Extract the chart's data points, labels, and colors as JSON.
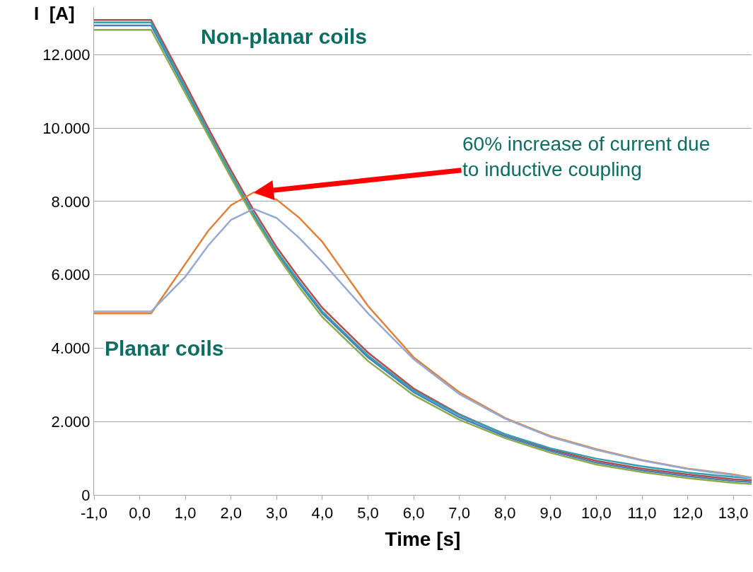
{
  "chart_data": {
    "type": "line",
    "xlabel": "Time [s]",
    "ylabel": "I  [A]",
    "x": [
      -1,
      0.25,
      1,
      1.5,
      2,
      2.5,
      3,
      3.5,
      4,
      5,
      6,
      7,
      8,
      9,
      10,
      11,
      12,
      13,
      13.4
    ],
    "series": [
      {
        "color": "#b84a47",
        "values": [
          12950,
          12950,
          11200,
          10000,
          8850,
          7750,
          6750,
          5900,
          5100,
          3880,
          2900,
          2200,
          1650,
          1240,
          930,
          720,
          560,
          430,
          400
        ]
      },
      {
        "color": "#4a7ebb",
        "values": [
          12800,
          12800,
          11050,
          9850,
          8700,
          7600,
          6600,
          5750,
          4950,
          3750,
          2800,
          2120,
          1600,
          1200,
          880,
          670,
          510,
          380,
          350
        ]
      },
      {
        "color": "#31a0b5",
        "values": [
          12880,
          12880,
          11100,
          9900,
          8750,
          7650,
          6650,
          5800,
          5000,
          3800,
          2850,
          2180,
          1660,
          1270,
          990,
          780,
          610,
          490,
          460
        ]
      },
      {
        "color": "#8aac4f",
        "values": [
          12680,
          12680,
          10950,
          9800,
          8650,
          7550,
          6550,
          5650,
          4850,
          3650,
          2720,
          2050,
          1550,
          1150,
          830,
          620,
          460,
          330,
          300
        ]
      },
      {
        "color": "#e0813a",
        "values": [
          4950,
          4950,
          6300,
          7200,
          7900,
          8250,
          8050,
          7550,
          6900,
          5150,
          3750,
          2800,
          2100,
          1600,
          1250,
          950,
          720,
          560,
          470
        ]
      },
      {
        "color": "#95a9d2",
        "values": [
          5000,
          5000,
          5950,
          6800,
          7500,
          7800,
          7550,
          7000,
          6350,
          4950,
          3700,
          2750,
          2080,
          1580,
          1230,
          940,
          710,
          540,
          460
        ]
      }
    ],
    "xlim": [
      -1,
      13.4
    ],
    "xticks": [
      {
        "value": -1,
        "label": "-1,0"
      },
      {
        "value": 0,
        "label": "0,0"
      },
      {
        "value": 1,
        "label": "1,0"
      },
      {
        "value": 2,
        "label": "2,0"
      },
      {
        "value": 3,
        "label": "3,0"
      },
      {
        "value": 4,
        "label": "4,0"
      },
      {
        "value": 5,
        "label": "5,0"
      },
      {
        "value": 6,
        "label": "6,0"
      },
      {
        "value": 7,
        "label": "7,0"
      },
      {
        "value": 8,
        "label": "8,0"
      },
      {
        "value": 9,
        "label": "9,0"
      },
      {
        "value": 10,
        "label": "10,0"
      },
      {
        "value": 11,
        "label": "11,0"
      },
      {
        "value": 12,
        "label": "12,0"
      },
      {
        "value": 13,
        "label": "13,0"
      }
    ],
    "ylim": [
      0,
      13300
    ],
    "yticks": [
      0,
      {
        "value": 2000,
        "label": "2.000"
      },
      {
        "value": 4000,
        "label": "4.000"
      },
      {
        "value": 6000,
        "label": "6.000"
      },
      {
        "value": 8000,
        "label": "8.000"
      },
      {
        "value": 10000,
        "label": "10.000"
      },
      {
        "value": 12000,
        "label": "12.000"
      }
    ],
    "grid": "y",
    "marker": "none",
    "line_style": "solid",
    "annotations": [
      "Non-planar coils",
      "Planar coils",
      {
        "text": "60% increase of current due\nto inductive coupling",
        "x": 2.5,
        "y": 8250
      }
    ]
  }
}
